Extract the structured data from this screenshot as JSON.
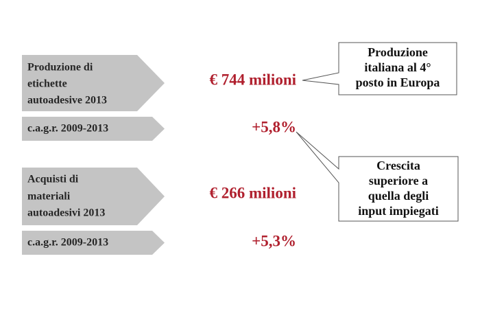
{
  "rows": [
    {
      "label": [
        "Produzione di",
        "etichette",
        "autoadesive 2013"
      ],
      "value": "€ 744 milioni"
    },
    {
      "label": [
        "c.a.g.r. 2009-2013"
      ],
      "value": "+5,8%"
    },
    {
      "label": [
        "Acquisti di",
        "materiali",
        "autoadesivi 2013"
      ],
      "value": "€ 266 milioni"
    },
    {
      "label": [
        "c.a.g.r. 2009-2013"
      ],
      "value": "+5,3%"
    }
  ],
  "callouts": [
    {
      "lines": [
        "Produzione",
        "italiana al 4°",
        "posto in Europa"
      ]
    },
    {
      "lines": [
        "Crescita",
        "superiore a",
        "quella degli",
        "input impiegati"
      ]
    }
  ]
}
